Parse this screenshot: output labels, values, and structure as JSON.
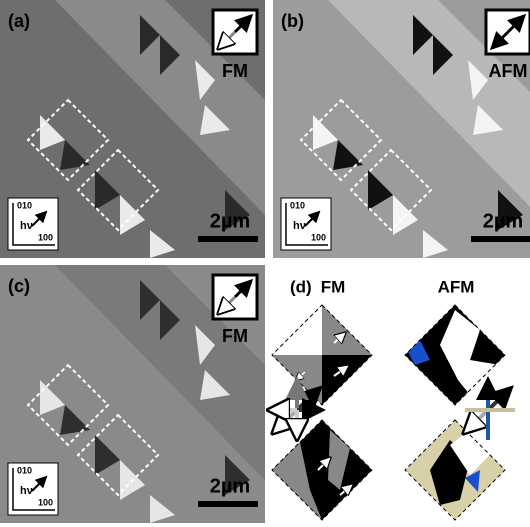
{
  "panels": [
    {
      "label": "(a)",
      "mode": "FM",
      "scale": "2µm",
      "axis_y": "010",
      "axis_x": "100",
      "beam": "hν"
    },
    {
      "label": "(b)",
      "mode": "AFM",
      "scale": "2µm",
      "axis_y": "010",
      "axis_x": "100",
      "beam": "hν"
    },
    {
      "label": "(c)",
      "mode": "FM",
      "scale": "2µm",
      "axis_y": "010",
      "axis_x": "100",
      "beam": "hν"
    }
  ],
  "panel_d": {
    "label": "(d)",
    "columns": [
      "FM",
      "AFM"
    ]
  }
}
